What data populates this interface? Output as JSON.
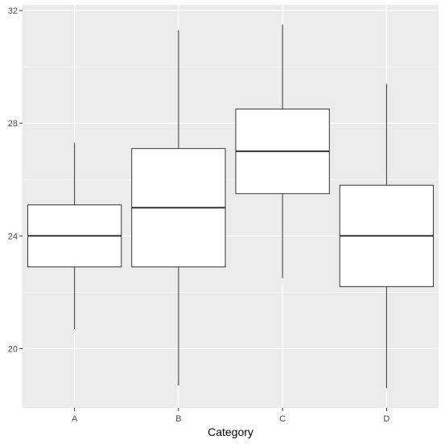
{
  "chart_data": {
    "type": "boxplot",
    "title": "",
    "xlabel": "Category",
    "ylabel": "",
    "categories": [
      "A",
      "B",
      "C",
      "D"
    ],
    "ylim": [
      17.9,
      32.2
    ],
    "yticks": [
      20,
      24,
      28,
      32
    ],
    "ytick_labels": [
      "20",
      "24",
      "28",
      "32"
    ],
    "grid": true,
    "legend": "none",
    "boxes": [
      {
        "category": "A",
        "whisker_low": 20.7,
        "q1": 22.9,
        "median": 24.0,
        "q3": 25.1,
        "whisker_high": 27.3
      },
      {
        "category": "B",
        "whisker_low": 18.7,
        "q1": 22.9,
        "median": 25.0,
        "q3": 27.1,
        "whisker_high": 31.3
      },
      {
        "category": "C",
        "whisker_low": 22.5,
        "q1": 25.5,
        "median": 27.0,
        "q3": 28.5,
        "whisker_high": 31.5
      },
      {
        "category": "D",
        "whisker_low": 18.6,
        "q1": 22.2,
        "median": 24.0,
        "q3": 25.8,
        "whisker_high": 29.4
      }
    ],
    "colors": {
      "panel_background": "#ebebeb",
      "grid_major": "#ffffff",
      "box_fill": "#ffffff",
      "box_stroke": "#333333",
      "tick_text": "#4d4d4d",
      "axis_title": "#000000"
    }
  }
}
